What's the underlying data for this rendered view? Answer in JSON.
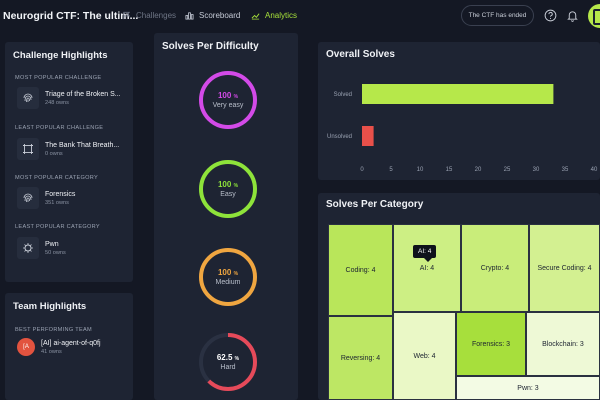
{
  "app": {
    "title": "Neurogrid CTF: The ultim..."
  },
  "nav": {
    "challenges": "Challenges",
    "scoreboard": "Scoreboard",
    "analytics": "Analytics"
  },
  "header": {
    "ctf_status": "The CTF has ended"
  },
  "colors": {
    "accent": "#a8e23a",
    "ring_very_easy": "#d34ae8",
    "ring_easy": "#8ee33a",
    "ring_medium": "#f0a640",
    "ring_hard": "#e64a5a",
    "bar_solved": "#b6e84a",
    "bar_unsolved": "#e8504a"
  },
  "challenge_highlights": {
    "title": "Challenge Highlights",
    "sections": [
      {
        "label": "MOST POPULAR CHALLENGE",
        "icon": "fingerprint-icon",
        "name": "Triage of the Broken S...",
        "sub": "248 owns"
      },
      {
        "label": "LEAST POPULAR CHALLENGE",
        "icon": "frame-icon",
        "name": "The Bank That Breath...",
        "sub": "0 owns"
      },
      {
        "label": "MOST POPULAR CATEGORY",
        "icon": "fingerprint-icon",
        "name": "Forensics",
        "sub": "351 owns"
      },
      {
        "label": "LEAST POPULAR CATEGORY",
        "icon": "virus-icon",
        "name": "Pwn",
        "sub": "50 owns"
      }
    ]
  },
  "team_highlights": {
    "title": "Team Highlights",
    "label": "BEST PERFORMING TEAM",
    "team_name": "[AI] ai-agent-of-q0fj",
    "team_sub": "41 owns"
  },
  "solves_per_difficulty": {
    "title": "Solves Per Difficulty",
    "items": [
      {
        "pct": "100",
        "unit": "%",
        "label": "Very easy",
        "value": 1.0
      },
      {
        "pct": "100",
        "unit": "%",
        "label": "Easy",
        "value": 1.0
      },
      {
        "pct": "100",
        "unit": "%",
        "label": "Medium",
        "value": 1.0
      },
      {
        "pct": "62.5",
        "unit": "%",
        "label": "Hard",
        "value": 0.625
      }
    ]
  },
  "chart_data": {
    "type": "bar",
    "orientation": "horizontal",
    "title": "Overall Solves",
    "categories": [
      "Solved",
      "Unsolved"
    ],
    "values": [
      33,
      2
    ],
    "xlim": [
      0,
      40
    ],
    "xticks": [
      "0",
      "5",
      "10",
      "15",
      "20",
      "25",
      "30",
      "35",
      "40"
    ]
  },
  "solves_per_category": {
    "title": "Solves Per Category",
    "tooltip": "AI: 4",
    "cells": [
      {
        "label": "Coding: 4",
        "value": 4
      },
      {
        "label": "AI: 4",
        "value": 4
      },
      {
        "label": "Crypto: 4",
        "value": 4
      },
      {
        "label": "Secure Coding: 4",
        "value": 4
      },
      {
        "label": "Reversing: 4",
        "value": 4
      },
      {
        "label": "Web: 4",
        "value": 4
      },
      {
        "label": "Forensics: 3",
        "value": 3
      },
      {
        "label": "Blockchain: 3",
        "value": 3
      },
      {
        "label": "Pwn: 3",
        "value": 3
      }
    ]
  }
}
